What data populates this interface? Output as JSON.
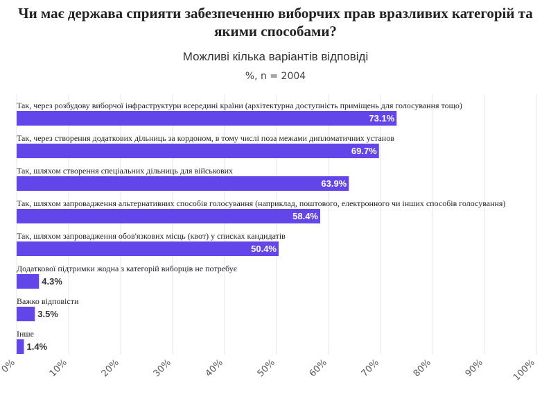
{
  "chart_data": {
    "type": "bar",
    "orientation": "horizontal",
    "title": "Чи має держава сприяти забезпеченню виборчих прав вразливих категорій та якими способами?",
    "subtitle": "Можливі кілька варіантів відповіді",
    "note": "%, n = 2004",
    "categories": [
      "Так, через розбудову виборчої інфраструктури всередині країни (архітектурна доступність приміщень для голосування тощо)",
      "Так, через створення додаткових дільниць за кордоном, в тому числі поза  межами дипломатичних установ",
      "Так, шляхом створення спеціальних дільниць для військових",
      "Так, шляхом запровадження альтернативних способів голосування (наприклад, поштового, електронного чи інших способів голосування)",
      "Так, шляхом запровадження обов'язкових місць (квот) у списках кандидатів",
      "Додаткової підтримки жодна з категорій виборців не потребує",
      "Важко відповісти",
      "Інше"
    ],
    "values": [
      73.1,
      69.7,
      63.9,
      58.4,
      50.4,
      4.3,
      3.5,
      1.4
    ],
    "value_labels": [
      "73.1%",
      "69.7%",
      "63.9%",
      "58.4%",
      "50.4%",
      "4.3%",
      "3.5%",
      "1.4%"
    ],
    "xlim": [
      0,
      100
    ],
    "xticks": [
      "0%",
      "10%",
      "20%",
      "30%",
      "40%",
      "50%",
      "60%",
      "70%",
      "80%",
      "90%",
      "100%"
    ],
    "grid": true,
    "bar_color": "#6246ea",
    "label_inside_color": "#ffffff",
    "label_outside_color": "#333333",
    "grid_color": "#e6e6e6"
  }
}
